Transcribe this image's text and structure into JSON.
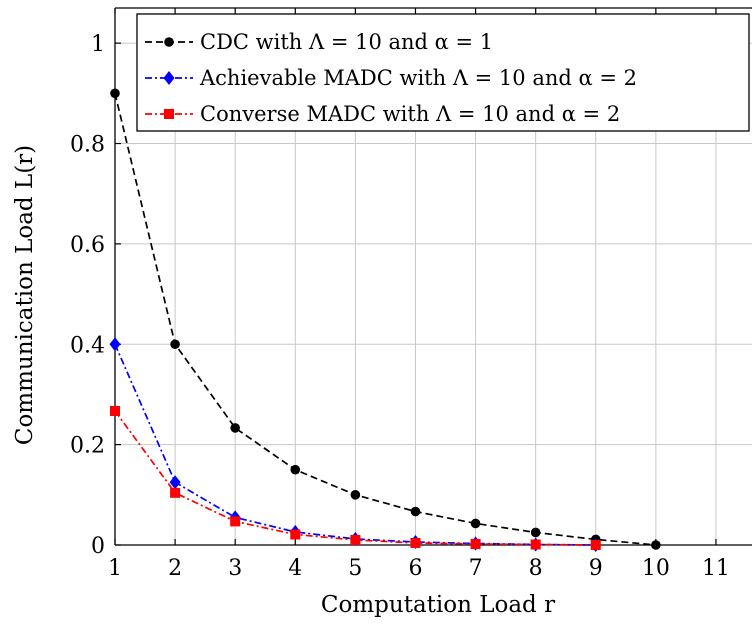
{
  "chart_data": {
    "type": "line",
    "xlabel": "Computation Load r",
    "ylabel": "Communication Load L(r)",
    "xlim": [
      1,
      11.6
    ],
    "ylim": [
      0,
      1.07
    ],
    "x_ticks": [
      1,
      2,
      3,
      4,
      5,
      6,
      7,
      8,
      9,
      10,
      11
    ],
    "y_ticks": [
      0,
      0.2,
      0.4,
      0.6,
      0.8,
      1
    ],
    "y_tick_labels": [
      "0",
      "0.2",
      "0.4",
      "0.6",
      "0.8",
      "1"
    ],
    "grid": true,
    "legend_position": "top-right",
    "series": [
      {
        "name": "CDC with Λ = 10 and α = 1",
        "color": "#000000",
        "marker": "circle",
        "line_style": "dashed",
        "x": [
          1,
          2,
          3,
          4,
          5,
          6,
          7,
          8,
          9,
          10
        ],
        "y": [
          0.9,
          0.4,
          0.2333,
          0.15,
          0.1,
          0.0667,
          0.0429,
          0.025,
          0.0111,
          0
        ]
      },
      {
        "name": "Achievable MADC with Λ = 10 and α = 2",
        "color": "#0000ff",
        "marker": "diamond",
        "line_style": "dashdot",
        "x": [
          1,
          2,
          3,
          4,
          5,
          6,
          7,
          8,
          9
        ],
        "y": [
          0.4,
          0.125,
          0.055,
          0.026,
          0.012,
          0.006,
          0.003,
          0.001,
          0.0
        ]
      },
      {
        "name": "Converse MADC with Λ = 10 and α = 2",
        "color": "#ff0000",
        "marker": "square",
        "line_style": "dashdot",
        "x": [
          1,
          2,
          3,
          4,
          5,
          6,
          7,
          8,
          9
        ],
        "y": [
          0.267,
          0.104,
          0.047,
          0.021,
          0.01,
          0.004,
          0.002,
          0.001,
          0.0
        ]
      }
    ]
  }
}
